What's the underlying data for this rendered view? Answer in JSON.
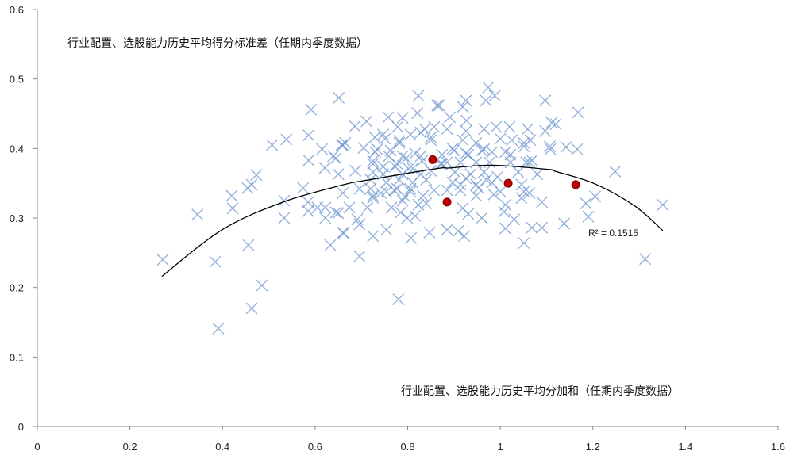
{
  "chart_data": {
    "type": "scatter",
    "title": "",
    "annotations": {
      "top_label": "行业配置、选股能力历史平均得分标准差（任期内季度数据）",
      "bottom_label": "行业配置、选股能力历史平均分加和（任期内季度数据）",
      "r_squared": "R² = 0.1515"
    },
    "xlim": [
      0,
      1.6
    ],
    "ylim": [
      0,
      0.6
    ],
    "x_ticks": [
      "0",
      "0.2",
      "0.4",
      "0.6",
      "0.8",
      "1",
      "1.2",
      "1.4",
      "1.6"
    ],
    "y_ticks": [
      "0",
      "0.1",
      "0.2",
      "0.3",
      "0.4",
      "0.5",
      "0.6"
    ],
    "grid": false,
    "legend": "none",
    "colors": {
      "points": "#6f97cf",
      "highlight": "#c00000",
      "trendline": "#000000"
    },
    "series": [
      {
        "marker": "x",
        "points": [
          [
            0.271,
            0.24
          ],
          [
            0.346,
            0.305
          ],
          [
            0.384,
            0.237
          ],
          [
            0.391,
            0.141
          ],
          [
            0.42,
            0.332
          ],
          [
            0.422,
            0.314
          ],
          [
            0.456,
            0.261
          ],
          [
            0.463,
            0.17
          ],
          [
            0.485,
            0.203
          ],
          [
            0.454,
            0.343
          ],
          [
            0.463,
            0.348
          ],
          [
            0.473,
            0.362
          ],
          [
            0.507,
            0.405
          ],
          [
            0.538,
            0.413
          ],
          [
            0.533,
            0.325
          ],
          [
            0.533,
            0.3
          ],
          [
            0.586,
            0.419
          ],
          [
            0.586,
            0.383
          ],
          [
            0.574,
            0.343
          ],
          [
            0.585,
            0.323
          ],
          [
            0.585,
            0.31
          ],
          [
            0.591,
            0.456
          ],
          [
            0.615,
            0.399
          ],
          [
            0.621,
            0.372
          ],
          [
            0.639,
            0.389
          ],
          [
            0.65,
            0.363
          ],
          [
            0.605,
            0.315
          ],
          [
            0.622,
            0.315
          ],
          [
            0.622,
            0.3
          ],
          [
            0.633,
            0.261
          ],
          [
            0.65,
            0.307
          ],
          [
            0.662,
            0.278
          ],
          [
            0.66,
            0.405
          ],
          [
            0.651,
            0.473
          ],
          [
            0.823,
            0.476
          ],
          [
            0.864,
            0.462
          ],
          [
            0.686,
            0.432
          ],
          [
            0.711,
            0.439
          ],
          [
            0.758,
            0.445
          ],
          [
            0.789,
            0.444
          ],
          [
            0.821,
            0.451
          ],
          [
            0.778,
            0.431
          ],
          [
            0.747,
            0.42
          ],
          [
            0.729,
            0.416
          ],
          [
            0.665,
            0.408
          ],
          [
            0.657,
            0.405
          ],
          [
            0.705,
            0.401
          ],
          [
            0.734,
            0.399
          ],
          [
            0.782,
            0.411
          ],
          [
            0.828,
            0.423
          ],
          [
            0.857,
            0.431
          ],
          [
            0.85,
            0.412
          ],
          [
            0.645,
            0.386
          ],
          [
            0.687,
            0.368
          ],
          [
            0.725,
            0.378
          ],
          [
            0.759,
            0.389
          ],
          [
            0.773,
            0.374
          ],
          [
            0.797,
            0.386
          ],
          [
            0.811,
            0.371
          ],
          [
            0.828,
            0.389
          ],
          [
            0.747,
            0.363
          ],
          [
            0.789,
            0.363
          ],
          [
            0.871,
            0.378
          ],
          [
            0.828,
            0.363
          ],
          [
            0.725,
            0.366
          ],
          [
            0.66,
            0.336
          ],
          [
            0.674,
            0.315
          ],
          [
            0.645,
            0.308
          ],
          [
            0.691,
            0.298
          ],
          [
            0.696,
            0.291
          ],
          [
            0.66,
            0.279
          ],
          [
            0.725,
            0.274
          ],
          [
            0.754,
            0.283
          ],
          [
            0.696,
            0.245
          ],
          [
            0.78,
            0.183
          ],
          [
            0.807,
            0.271
          ],
          [
            0.847,
            0.279
          ],
          [
            0.713,
            0.315
          ],
          [
            0.725,
            0.332
          ],
          [
            0.72,
            0.342
          ],
          [
            0.765,
            0.315
          ],
          [
            0.785,
            0.308
          ],
          [
            0.799,
            0.3
          ],
          [
            0.816,
            0.303
          ],
          [
            0.823,
            0.319
          ],
          [
            0.84,
            0.321
          ],
          [
            0.794,
            0.331
          ],
          [
            0.777,
            0.342
          ],
          [
            0.754,
            0.338
          ],
          [
            0.806,
            0.342
          ],
          [
            0.696,
            0.342
          ],
          [
            0.974,
            0.488
          ],
          [
            0.969,
            0.469
          ],
          [
            0.988,
            0.476
          ],
          [
            1.097,
            0.469
          ],
          [
            0.926,
            0.469
          ],
          [
            0.868,
            0.462
          ],
          [
            0.919,
            0.46
          ],
          [
            0.891,
            0.445
          ],
          [
            0.927,
            0.44
          ],
          [
            0.885,
            0.428
          ],
          [
            0.926,
            0.425
          ],
          [
            0.965,
            0.428
          ],
          [
            0.991,
            0.431
          ],
          [
            1.02,
            0.431
          ],
          [
            1.059,
            0.428
          ],
          [
            1.097,
            0.425
          ],
          [
            1.111,
            0.437
          ],
          [
            1.0,
            0.414
          ],
          [
            1.025,
            0.412
          ],
          [
            1.051,
            0.408
          ],
          [
            1.065,
            0.412
          ],
          [
            1.107,
            0.403
          ],
          [
            0.9,
            0.397
          ],
          [
            0.919,
            0.412
          ],
          [
            0.948,
            0.408
          ],
          [
            0.965,
            0.399
          ],
          [
            0.982,
            0.395
          ],
          [
            1.011,
            0.395
          ],
          [
            1.022,
            0.38
          ],
          [
            1.056,
            0.38
          ],
          [
            1.068,
            0.383
          ],
          [
            0.874,
            0.391
          ],
          [
            0.931,
            0.391
          ],
          [
            0.914,
            0.38
          ],
          [
            0.948,
            0.38
          ],
          [
            0.885,
            0.38
          ],
          [
            0.977,
            0.38
          ],
          [
            1.0,
            0.338
          ],
          [
            1.051,
            0.338
          ],
          [
            0.986,
            0.334
          ],
          [
            1.046,
            0.329
          ],
          [
            1.09,
            0.323
          ],
          [
            1.011,
            0.319
          ],
          [
            1.008,
            0.309
          ],
          [
            0.919,
            0.314
          ],
          [
            0.931,
            0.306
          ],
          [
            0.96,
            0.3
          ],
          [
            1.03,
            0.298
          ],
          [
            0.885,
            0.283
          ],
          [
            0.909,
            0.281
          ],
          [
            0.922,
            0.274
          ],
          [
            1.011,
            0.285
          ],
          [
            1.068,
            0.286
          ],
          [
            1.09,
            0.286
          ],
          [
            1.051,
            0.264
          ],
          [
            0.948,
            0.332
          ],
          [
            0.914,
            0.34
          ],
          [
            0.897,
            0.351
          ],
          [
            0.948,
            0.348
          ],
          [
            0.926,
            0.357
          ],
          [
            0.97,
            0.355
          ],
          [
            1.168,
            0.452
          ],
          [
            1.12,
            0.435
          ],
          [
            1.108,
            0.399
          ],
          [
            1.142,
            0.402
          ],
          [
            1.166,
            0.399
          ],
          [
            1.248,
            0.367
          ],
          [
            1.205,
            0.331
          ],
          [
            1.185,
            0.321
          ],
          [
            1.19,
            0.302
          ],
          [
            1.138,
            0.292
          ],
          [
            1.351,
            0.319
          ],
          [
            1.313,
            0.241
          ],
          [
            0.751,
            0.414
          ],
          [
            0.782,
            0.408
          ],
          [
            0.806,
            0.42
          ],
          [
            0.837,
            0.428
          ],
          [
            0.85,
            0.416
          ],
          [
            0.73,
            0.395
          ],
          [
            0.763,
            0.397
          ],
          [
            0.789,
            0.389
          ],
          [
            0.816,
            0.393
          ],
          [
            0.831,
            0.382
          ],
          [
            0.725,
            0.382
          ],
          [
            0.747,
            0.374
          ],
          [
            0.777,
            0.378
          ],
          [
            0.802,
            0.371
          ],
          [
            0.85,
            0.368
          ],
          [
            0.874,
            0.378
          ],
          [
            0.72,
            0.355
          ],
          [
            0.754,
            0.351
          ],
          [
            0.782,
            0.355
          ],
          [
            0.811,
            0.351
          ],
          [
            0.84,
            0.355
          ],
          [
            0.742,
            0.336
          ],
          [
            0.771,
            0.34
          ],
          [
            0.806,
            0.338
          ],
          [
            0.833,
            0.332
          ],
          [
            0.857,
            0.34
          ],
          [
            0.725,
            0.329
          ],
          [
            0.789,
            0.325
          ],
          [
            0.897,
            0.4
          ],
          [
            0.926,
            0.393
          ],
          [
            0.96,
            0.397
          ],
          [
            1.022,
            0.391
          ],
          [
            1.063,
            0.38
          ],
          [
            1.051,
            0.403
          ],
          [
            0.902,
            0.366
          ],
          [
            0.936,
            0.363
          ],
          [
            0.965,
            0.366
          ],
          [
            0.994,
            0.359
          ],
          [
            1.039,
            0.366
          ],
          [
            1.08,
            0.363
          ],
          [
            0.914,
            0.348
          ],
          [
            0.953,
            0.343
          ],
          [
            0.982,
            0.351
          ],
          [
            1.046,
            0.348
          ],
          [
            1.063,
            0.336
          ],
          [
            0.885,
            0.34
          ]
        ]
      },
      {
        "marker": "circle",
        "points": [
          [
            0.854,
            0.384
          ],
          [
            0.885,
            0.323
          ],
          [
            1.017,
            0.35
          ],
          [
            1.163,
            0.348
          ]
        ]
      }
    ],
    "trendline": {
      "type": "polynomial",
      "r_squared": 0.1515,
      "points": [
        [
          0.269,
          0.216
        ],
        [
          0.399,
          0.283
        ],
        [
          0.531,
          0.323
        ],
        [
          0.662,
          0.348
        ],
        [
          0.708,
          0.354
        ],
        [
          0.862,
          0.371
        ],
        [
          0.891,
          0.372
        ],
        [
          0.982,
          0.376
        ],
        [
          1.102,
          0.37
        ],
        [
          1.12,
          0.367
        ],
        [
          1.205,
          0.349
        ],
        [
          1.291,
          0.317
        ],
        [
          1.351,
          0.282
        ]
      ]
    }
  }
}
